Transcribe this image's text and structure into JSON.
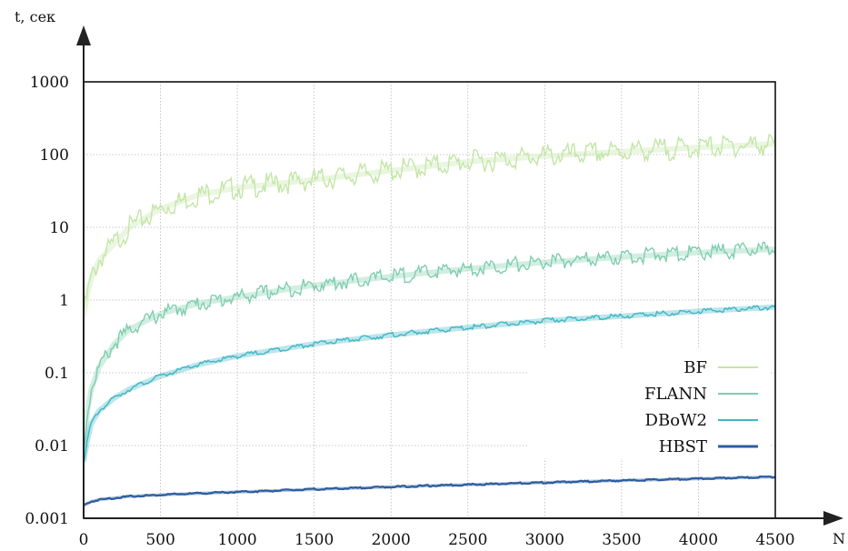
{
  "chart_data": {
    "type": "line",
    "title": "",
    "xlabel": "N",
    "ylabel": "t, сек",
    "xlim": [
      0,
      4500
    ],
    "ylim": [
      0.001,
      1000
    ],
    "yscale": "log",
    "grid": true,
    "legend_position": "bottom-right",
    "x_ticks": [
      "0",
      "500",
      "1000",
      "1500",
      "2000",
      "2500",
      "3000",
      "3500",
      "4000",
      "4500"
    ],
    "y_ticks": [
      "0.001",
      "0.01",
      "0.1",
      "1",
      "10",
      "100",
      "1000"
    ],
    "x": [
      0,
      25,
      50,
      100,
      200,
      300,
      500,
      750,
      1000,
      1500,
      2000,
      2500,
      3000,
      3500,
      4000,
      4500
    ],
    "series": [
      {
        "name": "BF",
        "color": "#c3e6a6",
        "values": [
          0.6,
          1.2,
          2.0,
          3.5,
          6,
          10,
          18,
          28,
          35,
          45,
          60,
          80,
          95,
          110,
          125,
          140
        ]
      },
      {
        "name": "FLANN",
        "color": "#7fcdae",
        "values": [
          0.008,
          0.03,
          0.06,
          0.12,
          0.25,
          0.4,
          0.65,
          0.9,
          1.1,
          1.6,
          2.1,
          2.7,
          3.3,
          3.9,
          4.5,
          5.0
        ]
      },
      {
        "name": "DBoW2",
        "color": "#41b6c4",
        "values": [
          0.006,
          0.012,
          0.02,
          0.03,
          0.045,
          0.06,
          0.09,
          0.13,
          0.17,
          0.25,
          0.33,
          0.42,
          0.52,
          0.6,
          0.7,
          0.8
        ]
      },
      {
        "name": "HBST",
        "color": "#2c5d9f",
        "values": [
          0.0015,
          0.0016,
          0.0017,
          0.0018,
          0.0019,
          0.002,
          0.0021,
          0.0022,
          0.0023,
          0.0025,
          0.0027,
          0.0029,
          0.0031,
          0.0033,
          0.0035,
          0.0037
        ]
      }
    ]
  }
}
